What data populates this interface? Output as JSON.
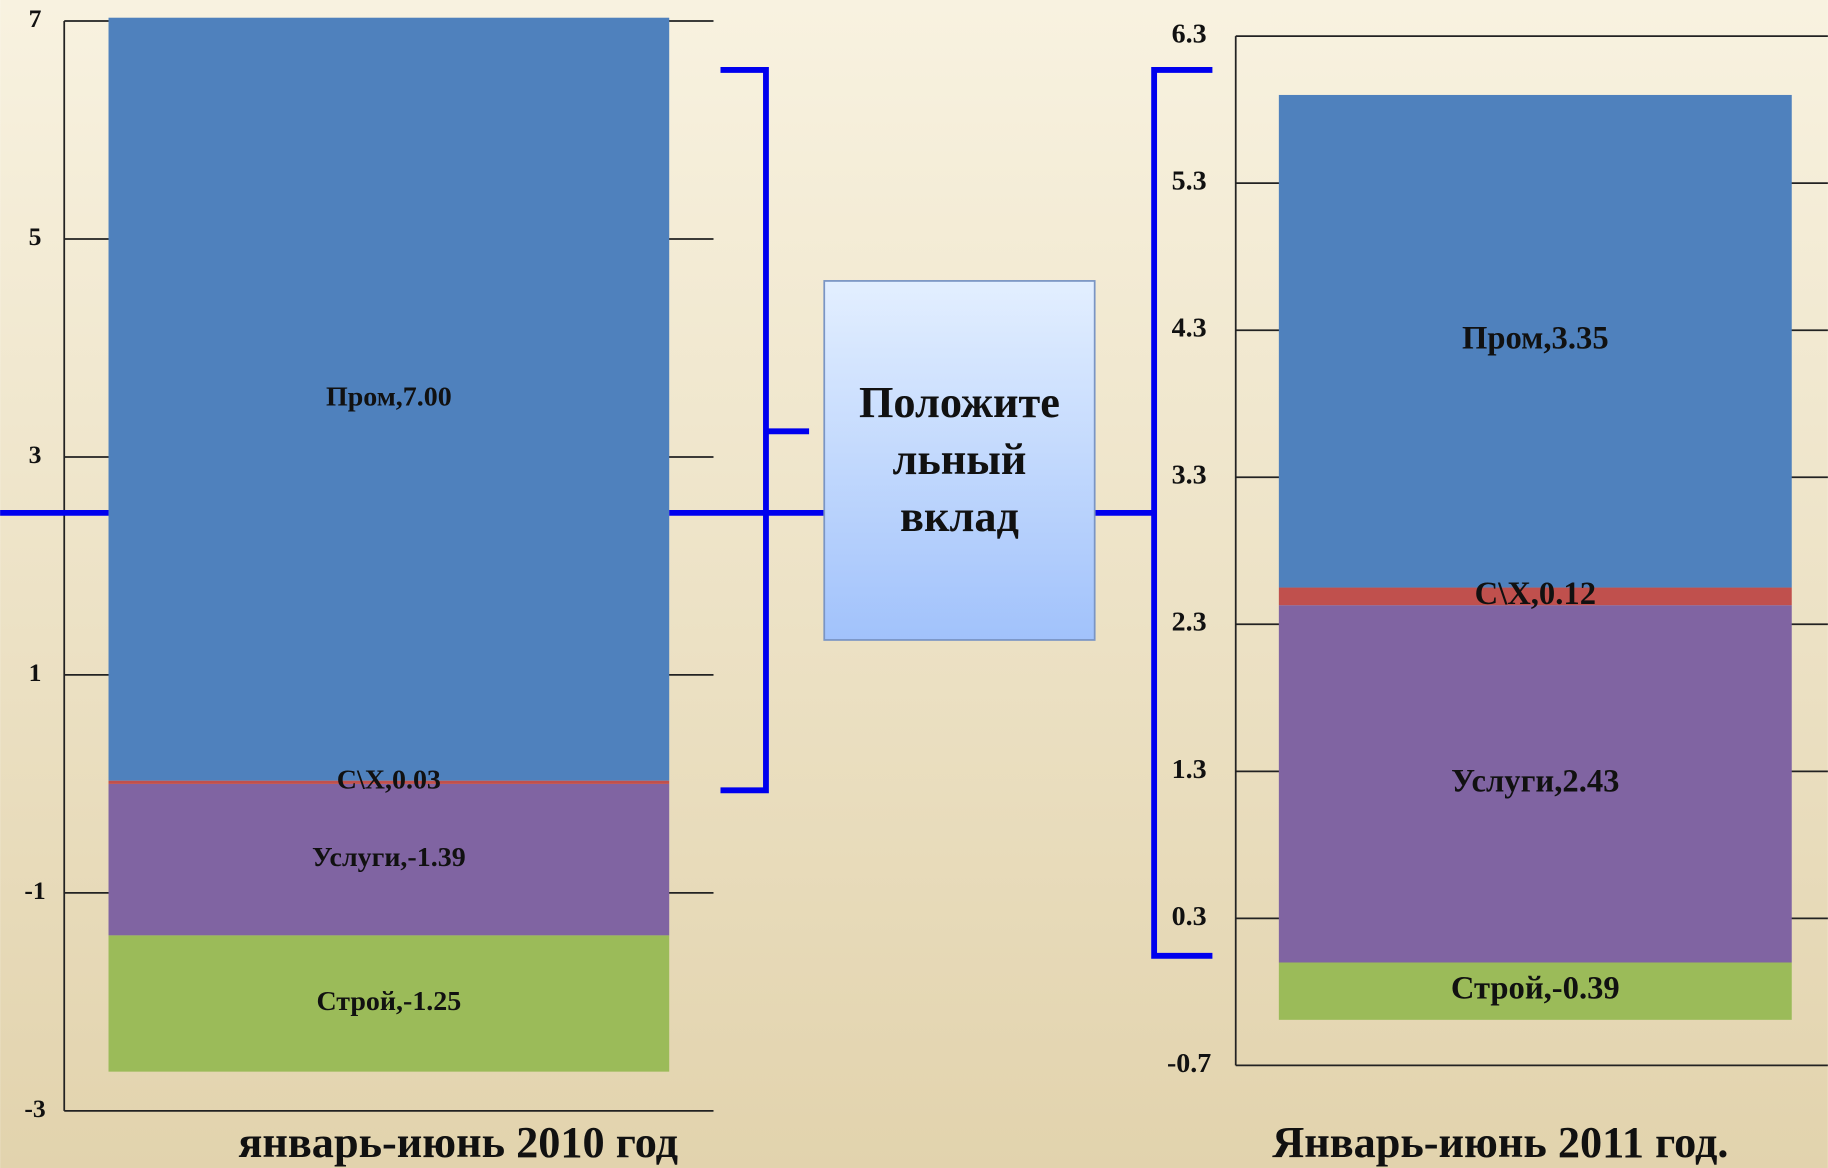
{
  "chart_data": [
    {
      "type": "stacked_bar",
      "title": "январь-июнь 2010 год",
      "categories": [
        null
      ],
      "ylim": [
        -3,
        7
      ],
      "yticks": [
        -3,
        -1,
        1,
        3,
        5,
        7
      ],
      "grid": true,
      "series": [
        {
          "name": "Услуги",
          "color": "#8064a2",
          "values": [
            -1.39
          ],
          "value_labels": [
            "Услуги,-1.39"
          ]
        },
        {
          "name": "С\\Х",
          "color": "#c0504d",
          "values": [
            0.03
          ],
          "value_labels": [
            "С\\Х,0.03"
          ]
        },
        {
          "name": "Пром",
          "color": "#4f81bd",
          "values": [
            7.0
          ],
          "value_labels": [
            "Пром,7.00"
          ]
        },
        {
          "name": "Строй",
          "color": "#9bbb59",
          "values": [
            -1.25
          ],
          "value_labels": [
            "Строй,-1.25"
          ]
        }
      ]
    },
    {
      "type": "stacked_bar",
      "title": "Январь-июнь 2011 год.",
      "categories": [
        null
      ],
      "ylim": [
        -0.7,
        6.3
      ],
      "yticks": [
        -0.7,
        0.3,
        1.3,
        2.3,
        3.3,
        4.3,
        5.3,
        6.3
      ],
      "grid": true,
      "series": [
        {
          "name": "Услуги",
          "color": "#8064a2",
          "values": [
            2.43
          ],
          "value_labels": [
            "Услуги,2.43"
          ]
        },
        {
          "name": "С\\Х",
          "color": "#c0504d",
          "values": [
            0.12
          ],
          "value_labels": [
            "С\\Х,0.12"
          ]
        },
        {
          "name": "Пром",
          "color": "#4f81bd",
          "values": [
            3.35
          ],
          "value_labels": [
            "Пром,3.35"
          ]
        },
        {
          "name": "Строй",
          "color": "#9bbb59",
          "values": [
            -0.39
          ],
          "value_labels": [
            "Строй,-0.39"
          ]
        }
      ]
    }
  ],
  "box": {
    "lines": [
      "Положите",
      "льный",
      "вклад"
    ]
  }
}
